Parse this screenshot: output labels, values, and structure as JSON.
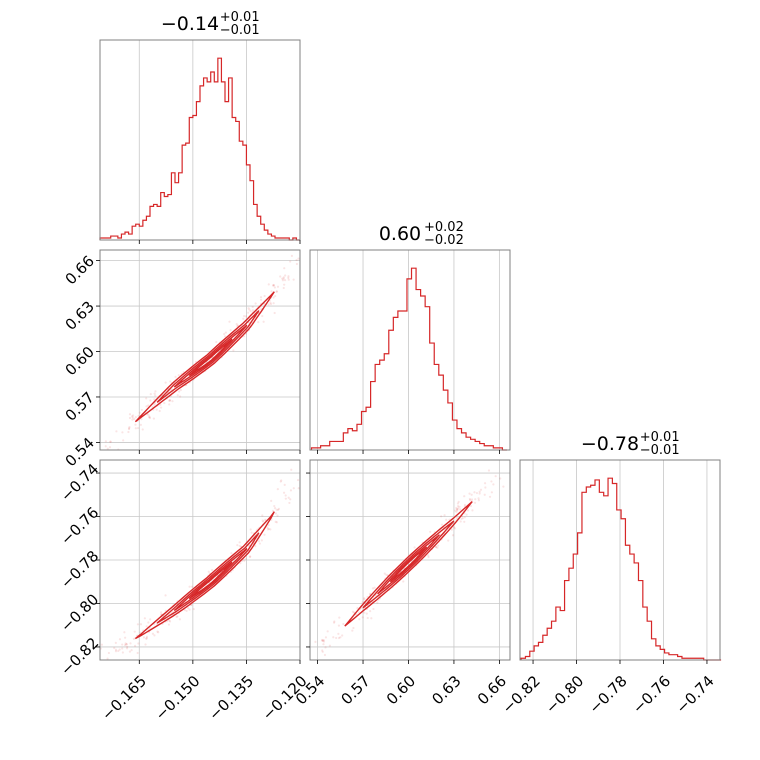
{
  "color": "#d62728",
  "chart_data": [
    {
      "type": "histogram",
      "panel": "a",
      "title": {
        "main": "−0.14",
        "plus": "+0.01",
        "minus": "−0.01"
      },
      "xlim": [
        -0.176,
        -0.12
      ],
      "bin_centers": [
        -0.1755,
        -0.1745,
        -0.1735,
        -0.1725,
        -0.1715,
        -0.1705,
        -0.1695,
        -0.1685,
        -0.1675,
        -0.1665,
        -0.1655,
        -0.1645,
        -0.1635,
        -0.1625,
        -0.1615,
        -0.1605,
        -0.1595,
        -0.1585,
        -0.1575,
        -0.1565,
        -0.1555,
        -0.1545,
        -0.1535,
        -0.1525,
        -0.1515,
        -0.1505,
        -0.1495,
        -0.1485,
        -0.1475,
        -0.1465,
        -0.1455,
        -0.1445,
        -0.1435,
        -0.1425,
        -0.1415,
        -0.1405,
        -0.1395,
        -0.1385,
        -0.1375,
        -0.1365,
        -0.1355,
        -0.1345,
        -0.1335,
        -0.1325,
        -0.1315,
        -0.1305,
        -0.1295,
        -0.1285,
        -0.1275,
        -0.1265,
        -0.1255,
        -0.1245,
        -0.1235,
        -0.1225,
        -0.1215,
        -0.1205
      ],
      "counts": [
        1,
        1,
        1,
        2,
        2,
        1,
        3,
        4,
        3,
        7,
        8,
        7,
        10,
        12,
        17,
        18,
        17,
        24,
        22,
        23,
        34,
        29,
        34,
        48,
        49,
        62,
        63,
        70,
        78,
        82,
        80,
        85,
        80,
        92,
        80,
        70,
        82,
        62,
        60,
        50,
        48,
        38,
        30,
        18,
        12,
        8,
        5,
        3,
        2,
        1,
        1,
        1,
        1,
        0,
        1,
        0
      ]
    },
    {
      "type": "scatter",
      "panel": "ab",
      "xlim": [
        -0.176,
        -0.12
      ],
      "ylim": [
        0.535,
        0.667
      ],
      "ridge": [
        [
          -0.176,
          0.533
        ],
        [
          -0.165,
          0.556
        ],
        [
          -0.155,
          0.577
        ],
        [
          -0.145,
          0.595
        ],
        [
          -0.135,
          0.617
        ],
        [
          -0.128,
          0.637
        ],
        [
          -0.12,
          0.662
        ]
      ]
    },
    {
      "type": "histogram",
      "panel": "b",
      "title": {
        "main": "0.60",
        "plus": "+0.02",
        "minus": "−0.02"
      },
      "xlim": [
        0.535,
        0.667
      ],
      "bin_centers": [
        0.5375,
        0.5405,
        0.5435,
        0.5465,
        0.5495,
        0.5525,
        0.5555,
        0.5585,
        0.5615,
        0.5645,
        0.5675,
        0.5705,
        0.5735,
        0.5765,
        0.5795,
        0.5825,
        0.5855,
        0.5885,
        0.5915,
        0.5945,
        0.5975,
        0.6005,
        0.6035,
        0.6065,
        0.6095,
        0.6125,
        0.6155,
        0.6185,
        0.6215,
        0.6245,
        0.6275,
        0.6305,
        0.6335,
        0.6365,
        0.6395,
        0.6425,
        0.6455,
        0.6485,
        0.6515,
        0.6545,
        0.6575,
        0.6605,
        0.6635
      ],
      "counts": [
        1,
        1,
        2,
        2,
        4,
        4,
        4,
        8,
        10,
        9,
        12,
        18,
        20,
        32,
        40,
        42,
        45,
        56,
        62,
        65,
        65,
        80,
        85,
        75,
        72,
        67,
        50,
        40,
        35,
        28,
        22,
        14,
        10,
        8,
        6,
        5,
        4,
        3,
        2,
        2,
        1,
        1,
        0
      ]
    },
    {
      "type": "scatter",
      "panel": "ac",
      "xlim": [
        -0.176,
        -0.12
      ],
      "ylim": [
        -0.826,
        -0.734
      ],
      "ridge": [
        [
          -0.176,
          -0.826
        ],
        [
          -0.165,
          -0.815
        ],
        [
          -0.155,
          -0.803
        ],
        [
          -0.145,
          -0.79
        ],
        [
          -0.135,
          -0.775
        ],
        [
          -0.128,
          -0.76
        ],
        [
          -0.12,
          -0.738
        ]
      ]
    },
    {
      "type": "scatter",
      "panel": "bc",
      "xlim": [
        0.535,
        0.667
      ],
      "ylim": [
        -0.826,
        -0.734
      ],
      "ridge": [
        [
          0.54,
          -0.823
        ],
        [
          0.57,
          -0.802
        ],
        [
          0.6,
          -0.782
        ],
        [
          0.63,
          -0.762
        ],
        [
          0.66,
          -0.74
        ]
      ]
    },
    {
      "type": "histogram",
      "panel": "c",
      "title": {
        "main": "−0.78",
        "plus": "+0.01",
        "minus": "−0.01"
      },
      "xlim": [
        -0.826,
        -0.734
      ],
      "bin_centers": [
        -0.8245,
        -0.8225,
        -0.8205,
        -0.8185,
        -0.8165,
        -0.8145,
        -0.8125,
        -0.8105,
        -0.8085,
        -0.8065,
        -0.8045,
        -0.8025,
        -0.8005,
        -0.7985,
        -0.7965,
        -0.7945,
        -0.7925,
        -0.7905,
        -0.7885,
        -0.7865,
        -0.7845,
        -0.7825,
        -0.7805,
        -0.7785,
        -0.7765,
        -0.7745,
        -0.7725,
        -0.7705,
        -0.7685,
        -0.7665,
        -0.7645,
        -0.7625,
        -0.7605,
        -0.7585,
        -0.7565,
        -0.7545,
        -0.7525,
        -0.7505,
        -0.7485,
        -0.7465,
        -0.7445,
        -0.7425,
        -0.7405,
        -0.7385,
        -0.7365,
        -0.7345
      ],
      "counts": [
        1,
        2,
        5,
        8,
        10,
        14,
        18,
        22,
        30,
        28,
        45,
        52,
        60,
        72,
        95,
        98,
        99,
        102,
        95,
        93,
        103,
        100,
        85,
        80,
        65,
        60,
        55,
        45,
        30,
        22,
        12,
        8,
        6,
        4,
        3,
        3,
        2,
        1,
        1,
        1,
        1,
        1,
        0,
        0,
        0,
        0
      ]
    }
  ],
  "ticks": {
    "a": {
      "values": [
        -0.165,
        -0.15,
        -0.135,
        -0.12
      ],
      "labels": [
        "−0.165",
        "−0.150",
        "−0.135",
        "−0.120"
      ]
    },
    "b": {
      "values": [
        0.54,
        0.57,
        0.6,
        0.63,
        0.66
      ],
      "labels": [
        "0.54",
        "0.57",
        "0.60",
        "0.63",
        "0.66"
      ]
    },
    "c": {
      "values": [
        -0.82,
        -0.8,
        -0.78,
        -0.76,
        -0.74
      ],
      "labels": [
        "−0.82",
        "−0.80",
        "−0.78",
        "−0.76",
        "−0.74"
      ]
    }
  }
}
